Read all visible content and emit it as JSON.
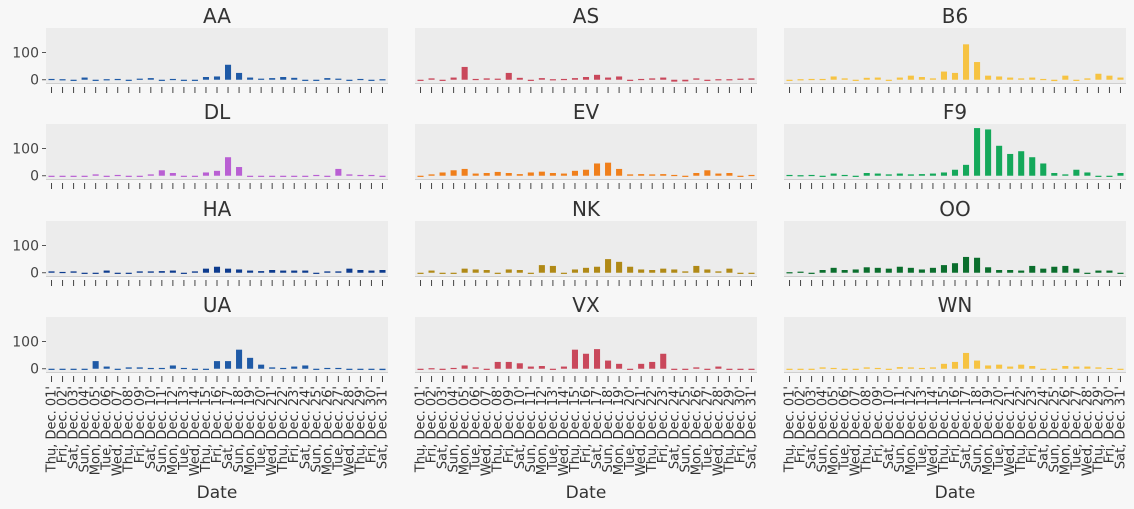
{
  "chart_data": {
    "type": "bar",
    "xlabel": "Date",
    "ylabel": "",
    "ylim": [
      -12,
      190
    ],
    "yticks": [
      0,
      100
    ],
    "grid": false,
    "legend": "none",
    "categories": [
      "Thu, Dec. 01'",
      "Fri, Dec. 02'",
      "Sat, Dec. 03'",
      "Sun, Dec. 04'",
      "Mon, Dec. 05'",
      "Tue, Dec. 06'",
      "Wed, Dec. 07'",
      "Thu, Dec. 08'",
      "Fri, Dec. 09'",
      "Sat, Dec. 10'",
      "Sun, Dec. 11'",
      "Mon, Dec. 12'",
      "Tue, Dec. 13'",
      "Wed, Dec. 14'",
      "Thu, Dec. 15'",
      "Fri, Dec. 16'",
      "Sat, Dec. 17'",
      "Sun, Dec. 18'",
      "Mon, Dec. 19'",
      "Tue, Dec. 20'",
      "Wed, Dec. 21'",
      "Thu, Dec. 22'",
      "Fri, Dec. 23'",
      "Sat, Dec. 24'",
      "Sun, Dec. 25'",
      "Mon, Dec. 26'",
      "Tue, Dec. 27'",
      "Wed, Dec. 28'",
      "Thu, Dec. 29'",
      "Fri, Dec. 30'",
      "Sat, Dec. 31'"
    ],
    "panels": [
      {
        "title": "AA",
        "color": "#1f5aa6",
        "values": [
          3,
          2,
          -4,
          8,
          0,
          2,
          3,
          0,
          4,
          6,
          0,
          3,
          0,
          0,
          10,
          12,
          55,
          25,
          8,
          4,
          6,
          10,
          7,
          0,
          0,
          6,
          4,
          0,
          3,
          0,
          2
        ]
      },
      {
        "title": "AS",
        "color": "#c9485b",
        "values": [
          0,
          5,
          0,
          8,
          47,
          3,
          5,
          4,
          25,
          7,
          0,
          6,
          2,
          3,
          6,
          10,
          18,
          8,
          12,
          0,
          3,
          5,
          8,
          -7,
          -6,
          5,
          0,
          2,
          2,
          4,
          5
        ]
      },
      {
        "title": "B6",
        "color": "#f6c342",
        "values": [
          0,
          2,
          3,
          3,
          12,
          5,
          0,
          7,
          8,
          0,
          8,
          15,
          10,
          5,
          30,
          25,
          130,
          65,
          15,
          12,
          8,
          5,
          8,
          3,
          -5,
          15,
          0,
          5,
          22,
          15,
          8
        ]
      },
      {
        "title": "DL",
        "color": "#b95fd3",
        "values": [
          -3,
          -3,
          -2,
          0,
          5,
          0,
          3,
          0,
          0,
          5,
          20,
          10,
          0,
          0,
          12,
          18,
          68,
          32,
          0,
          0,
          0,
          0,
          0,
          0,
          3,
          0,
          25,
          5,
          3,
          3,
          -3
        ]
      },
      {
        "title": "EV",
        "color": "#f07f1b",
        "values": [
          0,
          5,
          12,
          20,
          25,
          8,
          10,
          14,
          10,
          6,
          12,
          15,
          10,
          8,
          18,
          22,
          45,
          48,
          25,
          5,
          6,
          5,
          6,
          3,
          0,
          10,
          20,
          8,
          10,
          0,
          3
        ]
      },
      {
        "title": "F9",
        "color": "#14a85a",
        "values": [
          3,
          2,
          3,
          0,
          8,
          3,
          0,
          10,
          8,
          5,
          8,
          5,
          6,
          8,
          12,
          22,
          40,
          175,
          170,
          110,
          80,
          90,
          68,
          45,
          10,
          5,
          22,
          12,
          0,
          0,
          10
        ]
      },
      {
        "title": "HA",
        "color": "#0d3b8e",
        "values": [
          5,
          3,
          5,
          0,
          0,
          8,
          0,
          0,
          5,
          5,
          6,
          8,
          0,
          5,
          15,
          22,
          15,
          12,
          8,
          6,
          10,
          8,
          8,
          8,
          0,
          5,
          5,
          15,
          10,
          8,
          10
        ]
      },
      {
        "title": "NK",
        "color": "#b08916",
        "values": [
          0,
          8,
          0,
          0,
          15,
          12,
          10,
          0,
          12,
          10,
          0,
          28,
          25,
          0,
          12,
          18,
          22,
          50,
          40,
          22,
          12,
          10,
          15,
          12,
          5,
          25,
          12,
          5,
          15,
          0,
          0
        ]
      },
      {
        "title": "OO",
        "color": "#0b6e2d",
        "values": [
          2,
          4,
          0,
          10,
          18,
          10,
          12,
          20,
          18,
          15,
          22,
          18,
          12,
          18,
          28,
          35,
          58,
          55,
          20,
          10,
          10,
          8,
          25,
          15,
          22,
          25,
          15,
          0,
          8,
          8,
          0
        ]
      },
      {
        "title": "UA",
        "color": "#1f5aa6",
        "values": [
          0,
          0,
          0,
          0,
          28,
          8,
          0,
          5,
          5,
          3,
          3,
          12,
          3,
          0,
          0,
          28,
          28,
          70,
          40,
          15,
          5,
          3,
          8,
          12,
          0,
          3,
          3,
          0,
          0,
          0,
          -5
        ]
      },
      {
        "title": "VX",
        "color": "#c9485b",
        "values": [
          0,
          2,
          0,
          3,
          12,
          5,
          0,
          25,
          25,
          20,
          8,
          10,
          0,
          8,
          70,
          55,
          72,
          30,
          18,
          0,
          18,
          25,
          55,
          0,
          0,
          5,
          0,
          8,
          0,
          0,
          0
        ]
      },
      {
        "title": "WN",
        "color": "#f6c342",
        "values": [
          -3,
          0,
          -3,
          5,
          3,
          0,
          0,
          5,
          3,
          0,
          6,
          5,
          3,
          5,
          18,
          25,
          58,
          30,
          12,
          15,
          8,
          15,
          10,
          0,
          0,
          10,
          8,
          8,
          5,
          3,
          0
        ]
      }
    ]
  }
}
